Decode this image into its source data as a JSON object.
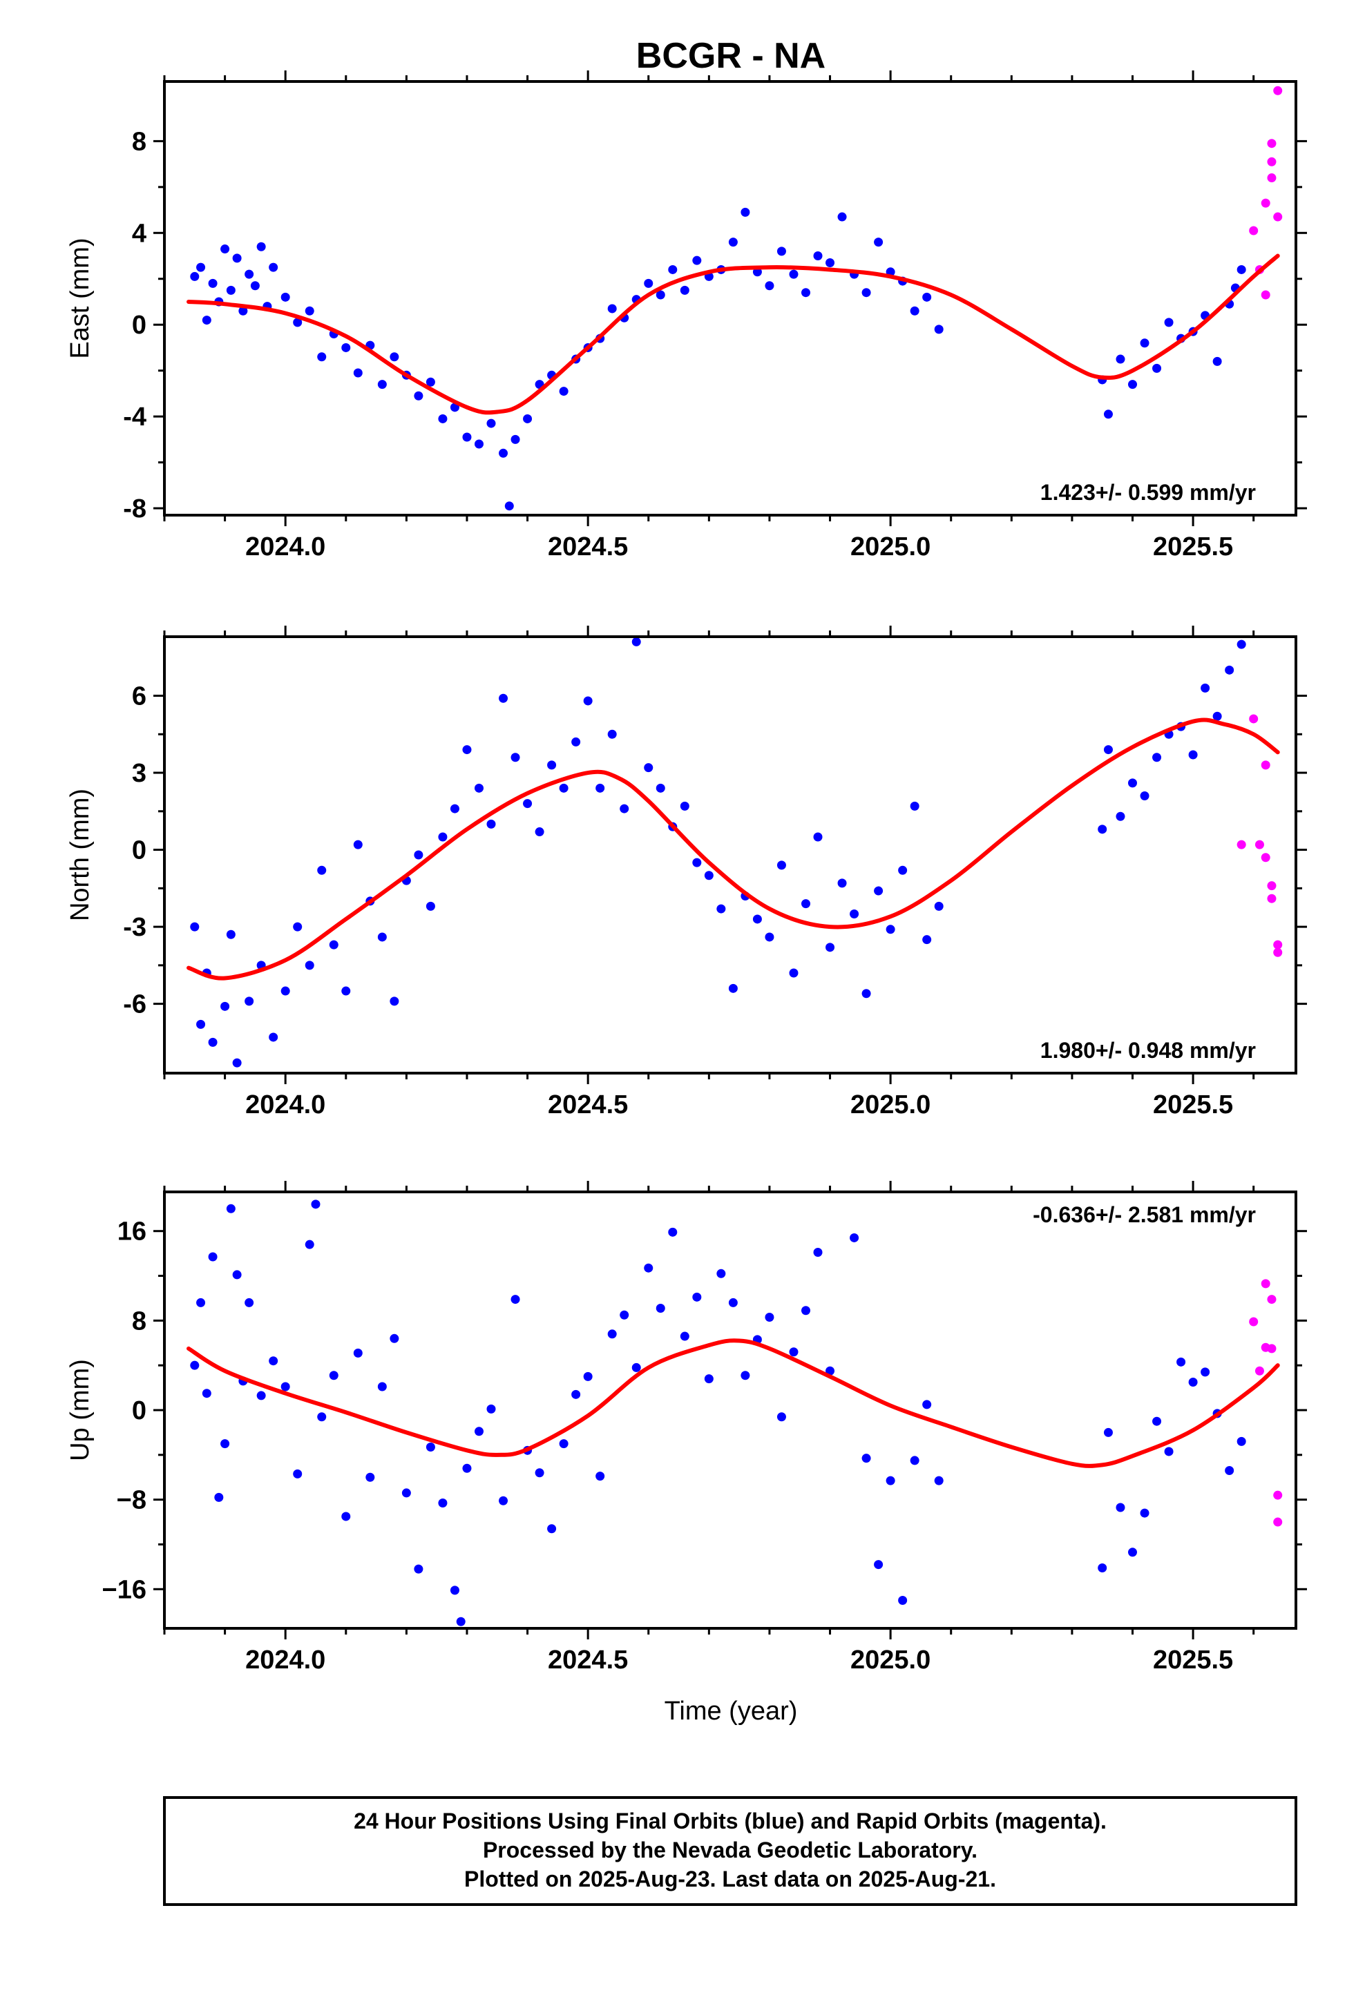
{
  "title": "BCGR - NA",
  "xlabel": "Time (year)",
  "colors": {
    "final": "#0000ff",
    "rapid": "#ff00ff",
    "fit": "#ff0000"
  },
  "chart_data": [
    {
      "type": "scatter",
      "ylabel": "East (mm)",
      "rate": "1.423+/- 0.599 mm/yr",
      "xlim": [
        2023.8,
        2025.67
      ],
      "ylim": [
        -8.3,
        10.6
      ],
      "xticks": [
        "2024.0",
        "2024.5",
        "2025.0",
        "2025.5"
      ],
      "yticks": [
        "-8",
        "-4",
        "0",
        "4",
        "8"
      ],
      "model_curve": {
        "x": [
          2023.84,
          2023.9,
          2024.0,
          2024.1,
          2024.2,
          2024.3,
          2024.35,
          2024.4,
          2024.5,
          2024.6,
          2024.7,
          2024.8,
          2024.9,
          2025.0,
          2025.1,
          2025.2,
          2025.3,
          2025.35,
          2025.4,
          2025.5,
          2025.6,
          2025.64
        ],
        "y": [
          1.0,
          0.9,
          0.5,
          -0.5,
          -2.2,
          -3.6,
          -3.8,
          -3.3,
          -1.0,
          1.3,
          2.3,
          2.5,
          2.4,
          2.1,
          1.3,
          -0.2,
          -1.8,
          -2.3,
          -2.0,
          -0.3,
          2.1,
          3.0
        ]
      },
      "series": [
        {
          "label": "final",
          "x": [
            2023.85,
            2023.86,
            2023.87,
            2023.88,
            2023.89,
            2023.9,
            2023.91,
            2023.92,
            2023.93,
            2023.94,
            2023.95,
            2023.96,
            2023.97,
            2023.98,
            2024.0,
            2024.02,
            2024.04,
            2024.06,
            2024.08,
            2024.1,
            2024.12,
            2024.14,
            2024.16,
            2024.18,
            2024.2,
            2024.22,
            2024.24,
            2024.26,
            2024.28,
            2024.3,
            2024.32,
            2024.34,
            2024.36,
            2024.37,
            2024.38,
            2024.4,
            2024.42,
            2024.44,
            2024.46,
            2024.48,
            2024.5,
            2024.52,
            2024.54,
            2024.56,
            2024.58,
            2024.6,
            2024.62,
            2024.64,
            2024.66,
            2024.68,
            2024.7,
            2024.72,
            2024.74,
            2024.76,
            2024.78,
            2024.8,
            2024.82,
            2024.84,
            2024.86,
            2024.88,
            2024.9,
            2024.92,
            2024.94,
            2024.96,
            2024.98,
            2025.0,
            2025.02,
            2025.04,
            2025.06,
            2025.08,
            2025.35,
            2025.36,
            2025.38,
            2025.4,
            2025.42,
            2025.44,
            2025.46,
            2025.48,
            2025.5,
            2025.52,
            2025.54,
            2025.56,
            2025.57,
            2025.58
          ],
          "y": [
            2.1,
            2.5,
            0.2,
            1.8,
            1.0,
            3.3,
            1.5,
            2.9,
            0.6,
            2.2,
            1.7,
            3.4,
            0.8,
            2.5,
            1.2,
            0.1,
            0.6,
            -1.4,
            -0.4,
            -1.0,
            -2.1,
            -0.9,
            -2.6,
            -1.4,
            -2.2,
            -3.1,
            -2.5,
            -4.1,
            -3.6,
            -4.9,
            -5.2,
            -4.3,
            -5.6,
            -7.9,
            -5.0,
            -4.1,
            -2.6,
            -2.2,
            -2.9,
            -1.5,
            -1.0,
            -0.6,
            0.7,
            0.3,
            1.1,
            1.8,
            1.3,
            2.4,
            1.5,
            2.8,
            2.1,
            2.4,
            3.6,
            4.9,
            2.3,
            1.7,
            3.2,
            2.2,
            1.4,
            3.0,
            2.7,
            4.7,
            2.2,
            1.4,
            3.6,
            2.3,
            1.9,
            0.6,
            1.2,
            -0.2,
            -2.4,
            -3.9,
            -1.5,
            -2.6,
            -0.8,
            -1.9,
            0.1,
            -0.6,
            -0.3,
            0.4,
            -1.6,
            0.9,
            1.6,
            2.4
          ]
        },
        {
          "label": "rapid",
          "x": [
            2025.6,
            2025.61,
            2025.62,
            2025.62,
            2025.63,
            2025.63,
            2025.63,
            2025.64,
            2025.64
          ],
          "y": [
            4.1,
            2.4,
            1.3,
            5.3,
            6.4,
            7.1,
            7.9,
            4.7,
            10.2
          ]
        }
      ]
    },
    {
      "type": "scatter",
      "ylabel": "North (mm)",
      "rate": "1.980+/- 0.948 mm/yr",
      "xlim": [
        2023.8,
        2025.67
      ],
      "ylim": [
        -8.7,
        8.3
      ],
      "xticks": [
        "2024.0",
        "2024.5",
        "2025.0",
        "2025.5"
      ],
      "yticks": [
        "-6",
        "-3",
        "0",
        "3",
        "6"
      ],
      "model_curve": {
        "x": [
          2023.84,
          2023.9,
          2024.0,
          2024.1,
          2024.2,
          2024.3,
          2024.4,
          2024.5,
          2024.55,
          2024.6,
          2024.7,
          2024.8,
          2024.9,
          2025.0,
          2025.1,
          2025.2,
          2025.3,
          2025.4,
          2025.5,
          2025.55,
          2025.6,
          2025.64
        ],
        "y": [
          -4.6,
          -5.0,
          -4.3,
          -2.7,
          -1.0,
          0.8,
          2.2,
          3.0,
          2.8,
          1.9,
          -0.5,
          -2.3,
          -3.0,
          -2.6,
          -1.2,
          0.7,
          2.5,
          4.0,
          5.0,
          4.9,
          4.5,
          3.8
        ]
      },
      "series": [
        {
          "label": "final",
          "x": [
            2023.85,
            2023.86,
            2023.87,
            2023.88,
            2023.9,
            2023.91,
            2023.92,
            2023.94,
            2023.96,
            2023.98,
            2024.0,
            2024.02,
            2024.04,
            2024.06,
            2024.08,
            2024.1,
            2024.12,
            2024.14,
            2024.16,
            2024.18,
            2024.2,
            2024.22,
            2024.24,
            2024.26,
            2024.28,
            2024.3,
            2024.32,
            2024.34,
            2024.36,
            2024.38,
            2024.4,
            2024.42,
            2024.44,
            2024.46,
            2024.48,
            2024.5,
            2024.52,
            2024.54,
            2024.56,
            2024.58,
            2024.6,
            2024.62,
            2024.64,
            2024.66,
            2024.68,
            2024.7,
            2024.72,
            2024.74,
            2024.76,
            2024.78,
            2024.8,
            2024.82,
            2024.84,
            2024.86,
            2024.88,
            2024.9,
            2024.92,
            2024.94,
            2024.96,
            2024.98,
            2025.0,
            2025.02,
            2025.04,
            2025.06,
            2025.08,
            2025.35,
            2025.36,
            2025.38,
            2025.4,
            2025.42,
            2025.44,
            2025.46,
            2025.48,
            2025.5,
            2025.52,
            2025.54,
            2025.56,
            2025.58
          ],
          "y": [
            -3.0,
            -6.8,
            -4.8,
            -7.5,
            -6.1,
            -3.3,
            -8.3,
            -5.9,
            -4.5,
            -7.3,
            -5.5,
            -3.0,
            -4.5,
            -0.8,
            -3.7,
            -5.5,
            0.2,
            -2.0,
            -3.4,
            -5.9,
            -1.2,
            -0.2,
            -2.2,
            0.5,
            1.6,
            3.9,
            2.4,
            1.0,
            5.9,
            3.6,
            1.8,
            0.7,
            3.3,
            2.4,
            4.2,
            5.8,
            2.4,
            4.5,
            1.6,
            8.1,
            3.2,
            2.4,
            0.9,
            1.7,
            -0.5,
            -1.0,
            -2.3,
            -5.4,
            -1.8,
            -2.7,
            -3.4,
            -0.6,
            -4.8,
            -2.1,
            0.5,
            -3.8,
            -1.3,
            -2.5,
            -5.6,
            -1.6,
            -3.1,
            -0.8,
            1.7,
            -3.5,
            -2.2,
            0.8,
            3.9,
            1.3,
            2.6,
            2.1,
            3.6,
            4.5,
            4.8,
            3.7,
            6.3,
            5.2,
            7.0,
            8.0
          ]
        },
        {
          "label": "rapid",
          "x": [
            2025.58,
            2025.6,
            2025.61,
            2025.62,
            2025.62,
            2025.63,
            2025.63,
            2025.64,
            2025.64
          ],
          "y": [
            0.2,
            5.1,
            0.2,
            3.3,
            -0.3,
            -1.9,
            -1.4,
            -3.7,
            -4.0
          ]
        }
      ]
    },
    {
      "type": "scatter",
      "ylabel": "Up (mm)",
      "rate": "-0.636+/- 2.581 mm/yr",
      "xlim": [
        2023.8,
        2025.67
      ],
      "ylim": [
        -19.5,
        19.5
      ],
      "xticks": [
        "2024.0",
        "2024.5",
        "2025.0",
        "2025.5"
      ],
      "yticks": [
        "−16",
        "−8",
        "0",
        "8",
        "16"
      ],
      "model_curve": {
        "x": [
          2023.84,
          2023.9,
          2024.0,
          2024.1,
          2024.2,
          2024.3,
          2024.35,
          2024.4,
          2024.5,
          2024.6,
          2024.7,
          2024.75,
          2024.8,
          2024.9,
          2025.0,
          2025.1,
          2025.2,
          2025.3,
          2025.35,
          2025.4,
          2025.5,
          2025.6,
          2025.64
        ],
        "y": [
          5.5,
          3.5,
          1.5,
          -0.2,
          -2.0,
          -3.6,
          -4.0,
          -3.5,
          -0.5,
          3.8,
          5.8,
          6.2,
          5.5,
          3.0,
          0.4,
          -1.5,
          -3.3,
          -4.8,
          -4.9,
          -4.1,
          -1.8,
          2.0,
          4.0
        ]
      },
      "series": [
        {
          "label": "final",
          "x": [
            2023.85,
            2023.86,
            2023.87,
            2023.88,
            2023.89,
            2023.9,
            2023.91,
            2023.92,
            2023.93,
            2023.94,
            2023.96,
            2023.98,
            2024.0,
            2024.02,
            2024.04,
            2024.05,
            2024.06,
            2024.08,
            2024.1,
            2024.12,
            2024.14,
            2024.16,
            2024.18,
            2024.2,
            2024.22,
            2024.24,
            2024.26,
            2024.28,
            2024.29,
            2024.3,
            2024.32,
            2024.34,
            2024.36,
            2024.38,
            2024.4,
            2024.42,
            2024.44,
            2024.46,
            2024.48,
            2024.5,
            2024.52,
            2024.54,
            2024.56,
            2024.58,
            2024.6,
            2024.62,
            2024.64,
            2024.66,
            2024.68,
            2024.7,
            2024.72,
            2024.74,
            2024.76,
            2024.78,
            2024.8,
            2024.82,
            2024.84,
            2024.86,
            2024.88,
            2024.9,
            2024.94,
            2024.96,
            2024.98,
            2025.0,
            2025.02,
            2025.04,
            2025.06,
            2025.08,
            2025.35,
            2025.36,
            2025.38,
            2025.4,
            2025.42,
            2025.44,
            2025.46,
            2025.48,
            2025.5,
            2025.52,
            2025.54,
            2025.56,
            2025.58
          ],
          "y": [
            4.0,
            9.6,
            1.5,
            13.7,
            -7.8,
            -3.0,
            18.0,
            12.1,
            2.6,
            9.6,
            1.3,
            4.4,
            2.1,
            -5.7,
            14.8,
            18.4,
            -0.6,
            3.1,
            -9.5,
            5.1,
            -6.0,
            2.1,
            6.4,
            -7.4,
            -14.2,
            -3.3,
            -8.3,
            -16.1,
            -18.9,
            -5.2,
            -1.9,
            0.1,
            -8.1,
            9.9,
            -3.6,
            -5.6,
            -10.6,
            -3.0,
            1.4,
            3.0,
            -5.9,
            6.8,
            8.5,
            3.8,
            12.7,
            9.1,
            15.9,
            6.6,
            10.1,
            2.8,
            12.2,
            9.6,
            3.1,
            6.3,
            8.3,
            -0.6,
            5.2,
            8.9,
            14.1,
            3.5,
            15.4,
            -4.3,
            -13.8,
            -6.3,
            -17.0,
            -4.5,
            0.5,
            -6.3,
            -14.1,
            -2.0,
            -8.7,
            -12.7,
            -9.2,
            -1.0,
            -3.7,
            4.3,
            2.5,
            3.4,
            -0.3,
            -5.4,
            -2.8
          ]
        },
        {
          "label": "rapid",
          "x": [
            2025.6,
            2025.61,
            2025.62,
            2025.62,
            2025.63,
            2025.63,
            2025.64,
            2025.64
          ],
          "y": [
            7.9,
            3.5,
            5.6,
            11.3,
            9.9,
            5.5,
            -7.6,
            -10.0
          ]
        }
      ]
    }
  ],
  "footer": {
    "line1": "24 Hour Positions Using Final Orbits (blue) and Rapid Orbits (magenta).",
    "line2": "Processed by the Nevada Geodetic Laboratory.",
    "line3": "Plotted on 2025-Aug-23. Last data on 2025-Aug-21."
  }
}
